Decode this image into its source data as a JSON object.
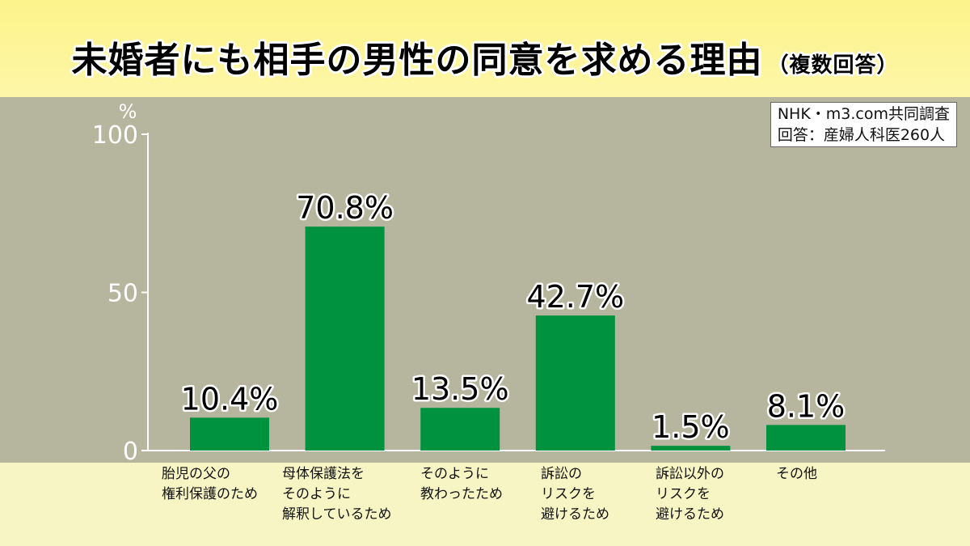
{
  "title": "未婚者にも相手の男性の同意を求める理由",
  "subtitle": "（複数回答）",
  "source": [
    "NHK・m3.com共同調査",
    "回答：産婦人科医260人"
  ],
  "colors": {
    "bar": "#00923f",
    "plot_bg": "#b6b69e",
    "header_bg": "#fdf38a",
    "lower_bg": "#f8f5c5"
  },
  "chart_data": {
    "type": "bar",
    "ylabel": "%",
    "ylim": [
      0,
      100
    ],
    "yticks": [
      "0",
      "50",
      "100"
    ],
    "categories": [
      "胎児の父の\n権利保護のため",
      "母体保護法を\nそのように\n解釈しているため",
      "そのように\n教わったため",
      "訴訟の\nリスクを\n避けるため",
      "訴訟以外の\nリスクを\n避けるため",
      "その他"
    ],
    "values": [
      10.4,
      70.8,
      13.5,
      42.7,
      1.5,
      8.1
    ],
    "data_labels": [
      "10.4%",
      "70.8%",
      "13.5%",
      "42.7%",
      "1.5%",
      "8.1%"
    ]
  }
}
